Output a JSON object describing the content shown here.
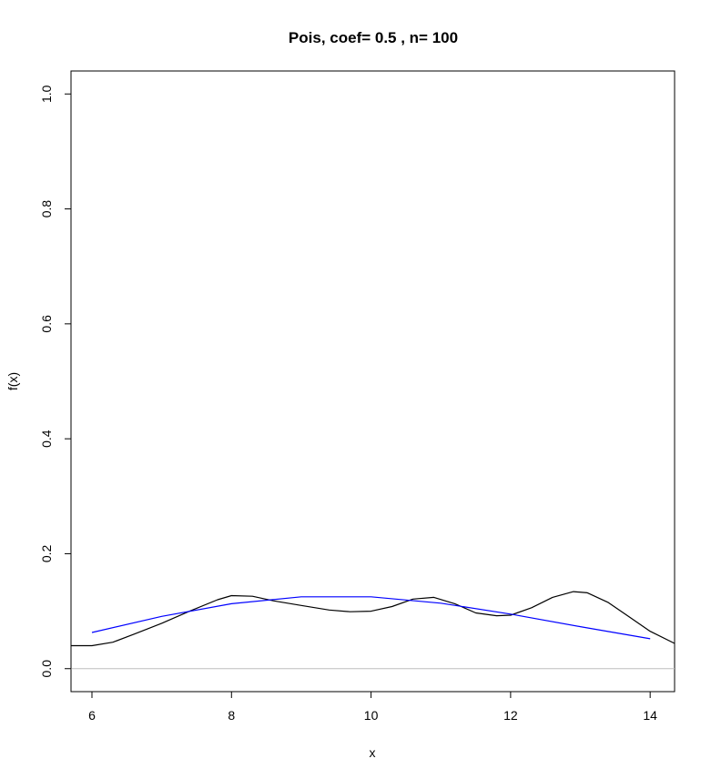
{
  "chart_data": {
    "type": "line",
    "title": "Pois, coef= 0.5 , n= 100",
    "xlabel": "x",
    "ylabel": "f(x)",
    "xlim": [
      5.7,
      14.35
    ],
    "ylim": [
      -0.04,
      1.04
    ],
    "xticks": [
      6,
      8,
      10,
      12,
      14
    ],
    "xtick_labels": [
      "6",
      "8",
      "10",
      "12",
      "14"
    ],
    "yticks": [
      0.0,
      0.2,
      0.4,
      0.6,
      0.8,
      1.0
    ],
    "ytick_labels": [
      "0.0",
      "0.2",
      "0.4",
      "0.6",
      "0.8",
      "1.0"
    ],
    "hline": {
      "y": 0,
      "color": "#bebebe"
    },
    "grid": false,
    "series": [
      {
        "color": "#000000",
        "x": [
          5.7,
          6.0,
          6.3,
          6.6,
          7.0,
          7.4,
          7.8,
          8.0,
          8.3,
          8.6,
          9.0,
          9.4,
          9.7,
          10.0,
          10.3,
          10.6,
          10.9,
          11.2,
          11.5,
          11.8,
          12.0,
          12.3,
          12.6,
          12.9,
          13.1,
          13.4,
          13.7,
          14.0,
          14.35
        ],
        "y": [
          0.04,
          0.04,
          0.046,
          0.06,
          0.079,
          0.1,
          0.12,
          0.127,
          0.126,
          0.118,
          0.11,
          0.102,
          0.099,
          0.1,
          0.108,
          0.121,
          0.124,
          0.113,
          0.097,
          0.092,
          0.093,
          0.106,
          0.124,
          0.134,
          0.132,
          0.115,
          0.09,
          0.065,
          0.044
        ]
      },
      {
        "color": "#0000ff",
        "x": [
          6.0,
          7.0,
          8.0,
          9.0,
          10.0,
          11.0,
          12.0,
          13.0,
          14.0
        ],
        "y": [
          0.063,
          0.091,
          0.113,
          0.125,
          0.125,
          0.114,
          0.095,
          0.073,
          0.052
        ]
      }
    ]
  }
}
